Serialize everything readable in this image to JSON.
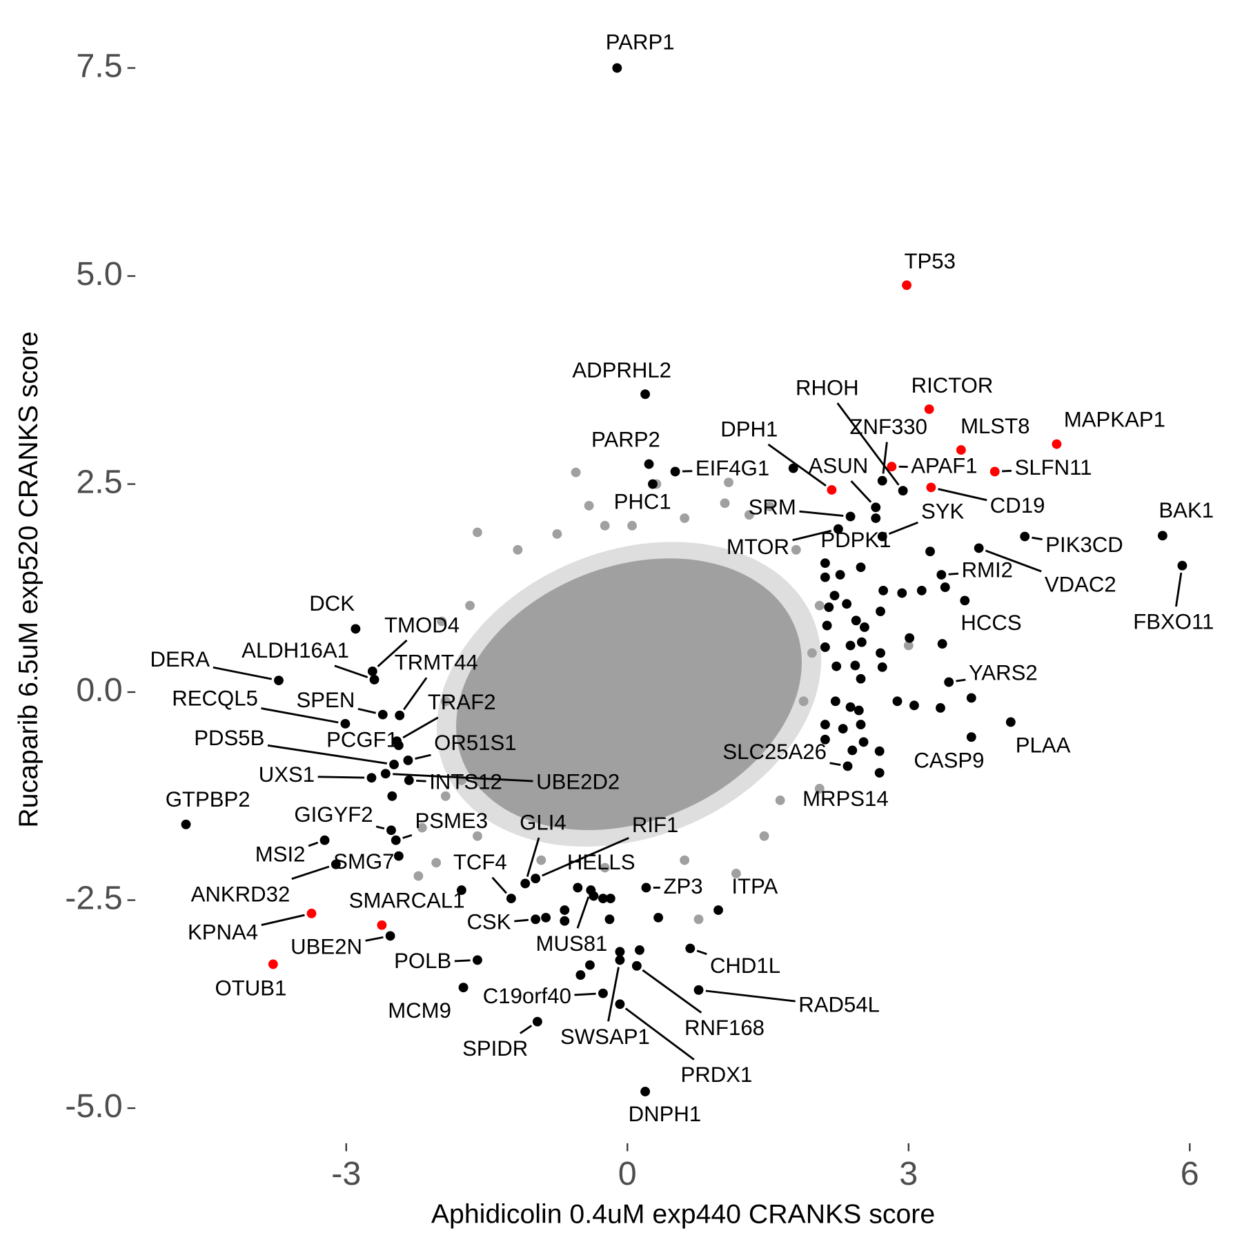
{
  "chart_data": {
    "type": "scatter",
    "x_label": "Aphidicolin 0.4uM exp440 CRANKS score",
    "y_label": "Rucaparib 6.5uM exp520 CRANKS score",
    "xlim": [
      -5.25,
      6.43
    ],
    "ylim": [
      -5.46,
      8.03
    ],
    "xticks": [
      -3,
      0,
      3,
      6
    ],
    "yticks": [
      {
        "value": -5,
        "label": "-5.0"
      },
      -2.5,
      {
        "value": 0,
        "label": "0.0"
      },
      2.5,
      {
        "value": 5,
        "label": "5.0"
      },
      7.5
    ],
    "series": [
      {
        "color": "#a0a0a0",
        "x": [
          -0.55,
          -0.41,
          -1.6,
          0.05,
          1.04,
          1.3,
          1.52,
          1.08,
          0.31,
          3.0,
          1.63,
          1.16,
          0.76,
          -2.23,
          -2.04,
          -1.6,
          -2.19,
          -1.94,
          -1.98,
          -1.68,
          -1.17,
          -0.75,
          -0.24,
          0.61,
          1.8,
          2.05,
          2.05,
          1.46,
          0.61,
          -0.24,
          -0.92,
          -1.77,
          -1.94,
          1.88,
          1.97
        ],
        "y": [
          2.64,
          2.24,
          1.92,
          2.0,
          2.27,
          2.13,
          2.23,
          2.52,
          2.5,
          0.56,
          -1.3,
          -2.18,
          -2.73,
          -2.21,
          -2.05,
          -1.73,
          -1.63,
          -1.25,
          0.85,
          1.04,
          1.71,
          1.9,
          2.0,
          2.09,
          1.71,
          1.04,
          -1.16,
          -1.73,
          -2.02,
          -2.11,
          -2.02,
          -1.06,
          -0.11,
          -0.11,
          0.47
        ]
      },
      {
        "color": "#000000",
        "x": [
          1.77,
          3.23,
          3.14,
          3.39,
          2.93,
          2.73,
          2.49,
          2.11,
          2.11,
          2.27,
          2.21,
          2.15,
          2.34,
          2.44,
          2.7,
          2.53,
          2.38,
          2.5,
          2.13,
          3.01,
          3.36,
          2.7,
          2.11,
          2.23,
          2.43,
          2.72,
          2.49,
          2.88,
          3.06,
          3.34,
          3.67,
          2.22,
          2.38,
          2.47,
          2.11,
          2.3,
          2.49,
          2.52,
          2.4,
          2.69,
          2.11,
          -2.51,
          -0.67,
          -0.67,
          -0.87,
          -0.36,
          -0.26,
          -0.18,
          -0.19,
          0.33,
          -0.08,
          0.13,
          -0.5,
          -0.4,
          -1.77
        ],
        "y": [
          2.69,
          1.69,
          1.22,
          1.26,
          1.19,
          1.22,
          1.5,
          1.55,
          1.38,
          1.41,
          1.16,
          1.02,
          1.06,
          0.86,
          0.97,
          0.78,
          0.56,
          0.6,
          0.8,
          0.65,
          0.58,
          0.47,
          0.54,
          0.31,
          0.32,
          0.3,
          0.16,
          -0.11,
          -0.16,
          -0.19,
          -0.07,
          -0.11,
          -0.18,
          -0.22,
          -0.39,
          -0.44,
          -0.39,
          -0.6,
          -0.7,
          -0.71,
          -0.57,
          -1.25,
          -2.62,
          -2.75,
          -2.71,
          -2.45,
          -2.48,
          -2.48,
          -2.73,
          -2.71,
          -3.12,
          -3.1,
          -3.4,
          -3.28,
          -2.38
        ]
      },
      {
        "color": "#000000",
        "labels": [
          "PARP1",
          "ADPRHL2",
          "ZNF330",
          "RHOH",
          "ASUN",
          "PARP2",
          "EIF4G1",
          "PHC1",
          "SRM",
          "SYK",
          "MTOR",
          "PDPK1",
          "BAK1",
          "PIK3CD",
          "VDAC2",
          "FBXO11",
          "RMI2",
          "HCCS",
          "YARS2",
          "PLAA",
          "CASP9",
          "SLC25A26",
          "MRPS14",
          "DCK",
          "TMOD4",
          "ALDH16A1",
          "DERA",
          "TRMT44",
          "RECQL5",
          "SPEN",
          "TRAF2",
          "PCGF1",
          "PDS5B",
          "OR51S1",
          "UXS1",
          "INTS12",
          "UBE2D2",
          "GTPBP2",
          "GIGYF2",
          "PSME3",
          "MSI2",
          "SMG7",
          "ANKRD32",
          "UBE2N",
          "GLI4",
          "RIF1",
          "HELLS",
          "TCF4",
          "CSK",
          "ZP3",
          "ITPA",
          "MUS81",
          "POLB",
          "CHD1L",
          "RAD54L",
          "C19orf40",
          "MCM9",
          "RNF168",
          "SWSAP1",
          "SPIDR",
          "PRDX1",
          "DNPH1"
        ],
        "x": [
          -0.11,
          0.19,
          2.72,
          2.94,
          2.65,
          0.23,
          0.51,
          0.27,
          2.38,
          2.72,
          2.25,
          2.65,
          5.71,
          4.24,
          3.75,
          5.92,
          3.35,
          3.6,
          3.43,
          4.09,
          3.67,
          2.35,
          2.69,
          -2.9,
          -2.72,
          -2.7,
          -3.72,
          -2.43,
          -3.01,
          -2.61,
          -2.46,
          -2.44,
          -2.49,
          -2.34,
          -2.73,
          -2.33,
          -2.58,
          -4.71,
          -2.52,
          -2.47,
          -3.23,
          -2.44,
          -3.11,
          -2.53,
          -1.09,
          -0.98,
          -0.53,
          -1.24,
          -0.98,
          0.2,
          0.97,
          -0.39,
          -1.6,
          0.67,
          0.76,
          -0.26,
          -1.75,
          0.1,
          -0.08,
          -0.96,
          -0.08,
          0.19
        ],
        "y": [
          7.5,
          3.58,
          2.54,
          2.42,
          2.22,
          2.74,
          2.65,
          2.5,
          2.11,
          1.87,
          1.96,
          2.09,
          1.88,
          1.87,
          1.73,
          1.52,
          1.41,
          1.1,
          0.12,
          -0.36,
          -0.54,
          -0.89,
          -0.97,
          0.76,
          0.25,
          0.15,
          0.14,
          -0.28,
          -0.38,
          -0.27,
          -0.59,
          -0.64,
          -0.87,
          -0.82,
          -1.03,
          -1.06,
          -0.98,
          -1.59,
          -1.66,
          -1.78,
          -1.78,
          -1.97,
          -2.07,
          -2.93,
          -2.3,
          -2.24,
          -2.35,
          -2.48,
          -2.73,
          -2.35,
          -2.62,
          -2.38,
          -3.22,
          -3.08,
          -3.58,
          -3.62,
          -3.55,
          -3.29,
          -3.22,
          -3.96,
          -3.75,
          -4.8
        ]
      },
      {
        "color": "#ff0000",
        "labels": [
          "TP53",
          "RICTOR",
          "MLST8",
          "MAPKAP1",
          "SLFN11",
          "APAF1",
          "DPH1",
          "CD19",
          "KPNA4",
          "SMARCAL1",
          "OTUB1"
        ],
        "x": [
          2.98,
          3.22,
          3.56,
          4.58,
          3.92,
          2.82,
          2.18,
          3.24,
          -3.37,
          -2.62,
          -3.78
        ],
        "y": [
          4.89,
          3.4,
          2.91,
          2.98,
          2.65,
          2.71,
          2.43,
          2.46,
          -2.66,
          -2.8,
          -3.27
        ]
      }
    ]
  }
}
